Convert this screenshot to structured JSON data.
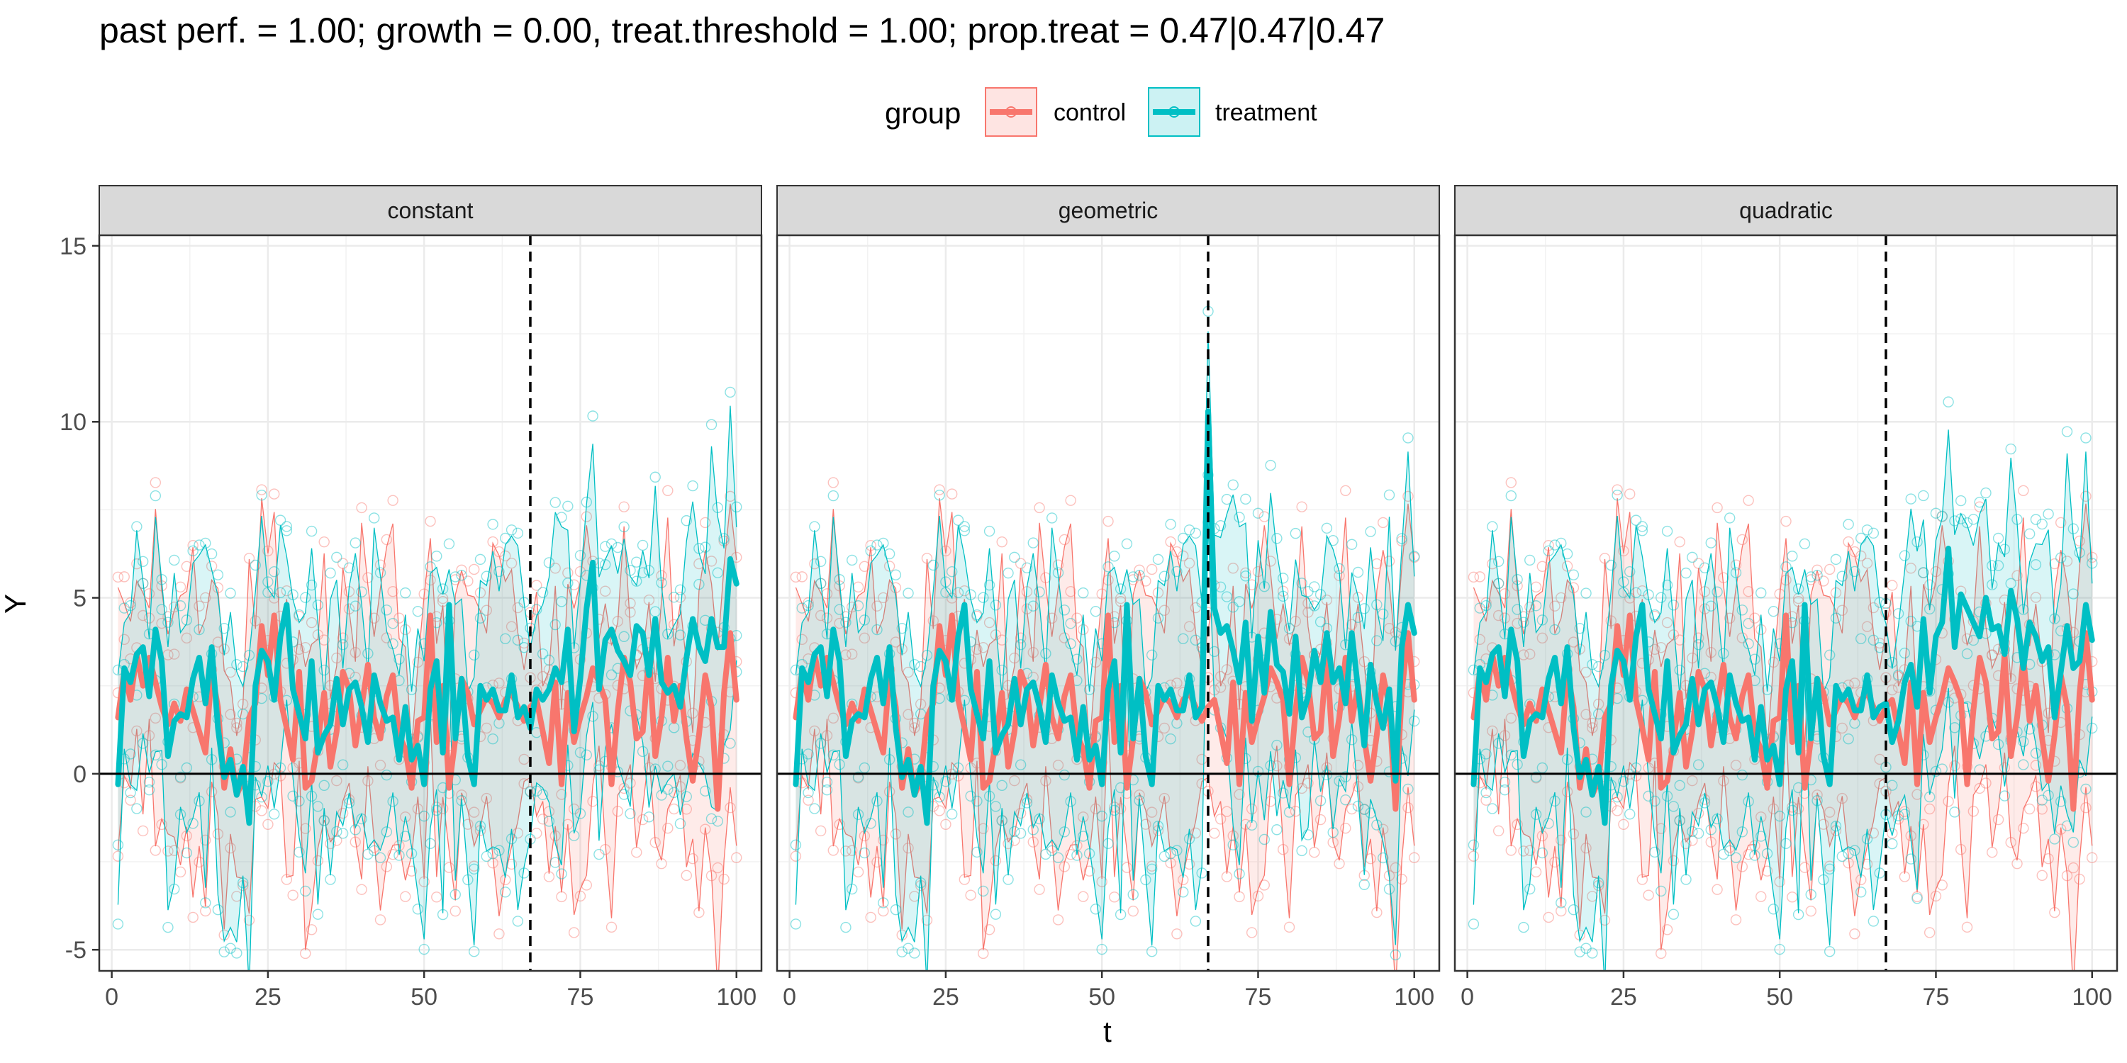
{
  "chart_data": {
    "type": "line",
    "title": "past perf. = 1.00; growth = 0.00,  treat.threshold = 1.00;  prop.treat = 0.47|0.47|0.47",
    "xlabel": "t",
    "ylabel": "Y",
    "xlim": [
      -2,
      104
    ],
    "ylim": [
      -5.6,
      15.3
    ],
    "xticks": [
      0,
      25,
      50,
      75,
      100
    ],
    "yticks": [
      -5,
      0,
      5,
      10,
      15
    ],
    "hline": 0,
    "vline": 67,
    "grid": true,
    "legend": {
      "title": "group",
      "position": "top",
      "entries": [
        {
          "label": "control",
          "color": "#F8766D"
        },
        {
          "label": "treatment",
          "color": "#00BFC4"
        }
      ]
    },
    "panels": [
      {
        "label": "constant",
        "series": [
          {
            "name": "control",
            "color": "#F8766D",
            "mean": [
              1.6,
              2.9,
              2.1,
              3.4,
              2.5,
              3.3,
              2.6,
              1.9,
              1.4,
              2.0,
              1.5,
              2.4,
              1.8,
              1.2,
              0.6,
              2.9,
              1.9,
              -0.4,
              0.7,
              -0.6,
              -0.2,
              1.6,
              2.0,
              4.2,
              2.8,
              4.5,
              2.1,
              1.3,
              0.4,
              2.9,
              -0.4,
              -0.2,
              0.9,
              2.3,
              0.2,
              1.2,
              2.9,
              2.4,
              0.8,
              1.9,
              3.1,
              1.6,
              1.0,
              2.2,
              2.8,
              1.1,
              0.7,
              -0.4,
              1.5,
              1.6,
              4.5,
              0.9,
              2.5,
              -0.4,
              1.0,
              2.7,
              2.3,
              1.4,
              1.8,
              2.2,
              2.0,
              1.6,
              2.1,
              2.3,
              1.9,
              1.5,
              1.9,
              2.1,
              1.2,
              0.3,
              2.6,
              -0.3,
              2.3,
              0.9,
              1.6,
              2.2,
              3.0,
              2.6,
              2.1,
              -0.3,
              1.8,
              3.3,
              2.6,
              1.0,
              1.2,
              3.4,
              0.5,
              1.6,
              3.3,
              1.5,
              2.5,
              1.0,
              -0.2,
              1.1,
              2.8,
              1.9,
              -1.0,
              2.3,
              4.0,
              2.1
            ]
          },
          {
            "name": "treatment",
            "color": "#00BFC4",
            "mean": [
              -0.3,
              3.0,
              2.6,
              3.4,
              3.6,
              2.2,
              4.1,
              3.2,
              0.5,
              1.5,
              1.7,
              1.6,
              2.7,
              3.3,
              2.0,
              3.6,
              1.3,
              -0.1,
              0.4,
              -0.6,
              0.2,
              -1.4,
              2.5,
              3.5,
              3.2,
              2.1,
              3.9,
              4.8,
              2.4,
              1.7,
              1.0,
              3.2,
              0.6,
              1.1,
              1.4,
              2.7,
              1.4,
              2.4,
              2.6,
              1.9,
              0.9,
              2.8,
              2.0,
              1.5,
              1.6,
              0.4,
              1.9,
              0.4,
              0.8,
              -0.3,
              2.4,
              3.2,
              0.6,
              4.8,
              1.0,
              2.7,
              0.5,
              -0.3,
              2.5,
              2.1,
              2.4,
              1.8,
              1.8,
              2.8,
              1.6,
              1.9,
              1.3,
              2.4,
              2.1,
              2.4,
              3.0,
              2.6,
              4.1,
              1.2,
              2.7,
              4.7,
              6.0,
              2.4,
              3.8,
              4.1,
              3.5,
              3.2,
              2.8,
              4.2,
              4.0,
              2.8,
              4.4,
              2.6,
              2.3,
              2.5,
              1.9,
              3.3,
              4.4,
              3.6,
              3.2,
              4.4,
              3.6,
              3.6,
              6.1,
              5.4
            ]
          }
        ]
      },
      {
        "label": "geometric",
        "series": [
          {
            "name": "control",
            "color": "#F8766D",
            "mean": [
              1.6,
              2.9,
              2.1,
              3.4,
              2.5,
              3.3,
              2.6,
              1.9,
              1.4,
              2.0,
              1.5,
              2.4,
              1.8,
              1.2,
              0.6,
              2.9,
              1.9,
              -0.4,
              0.7,
              -0.6,
              -0.2,
              1.6,
              2.0,
              4.2,
              2.8,
              4.5,
              2.1,
              1.3,
              0.4,
              2.9,
              -0.4,
              -0.2,
              0.9,
              2.3,
              0.2,
              1.2,
              2.9,
              2.4,
              0.8,
              1.9,
              3.1,
              1.6,
              1.0,
              2.2,
              2.8,
              1.1,
              0.7,
              -0.4,
              1.5,
              1.6,
              4.5,
              0.9,
              2.5,
              -0.4,
              1.0,
              2.7,
              2.3,
              1.4,
              1.8,
              2.2,
              2.0,
              1.6,
              2.1,
              2.3,
              1.9,
              1.5,
              1.9,
              2.1,
              1.2,
              0.3,
              2.6,
              -0.3,
              2.3,
              0.9,
              1.6,
              2.2,
              3.0,
              2.6,
              2.1,
              -0.3,
              1.8,
              3.3,
              2.6,
              1.0,
              1.2,
              3.4,
              0.5,
              1.6,
              3.3,
              1.5,
              2.5,
              1.0,
              -0.2,
              1.1,
              2.8,
              1.9,
              -1.0,
              2.3,
              4.0,
              2.1
            ]
          },
          {
            "name": "treatment",
            "color": "#00BFC4",
            "mean": [
              -0.3,
              3.0,
              2.6,
              3.4,
              3.6,
              2.2,
              4.1,
              3.2,
              0.5,
              1.5,
              1.7,
              1.6,
              2.7,
              3.3,
              2.0,
              3.6,
              1.3,
              -0.1,
              0.4,
              -0.6,
              0.2,
              -1.4,
              2.5,
              3.5,
              3.2,
              2.1,
              3.9,
              4.8,
              2.4,
              1.7,
              1.0,
              3.2,
              0.6,
              1.1,
              1.4,
              2.7,
              1.4,
              2.4,
              2.6,
              1.9,
              0.9,
              2.8,
              2.0,
              1.5,
              1.6,
              0.4,
              1.9,
              0.4,
              0.8,
              -0.3,
              2.4,
              3.2,
              0.6,
              4.8,
              1.0,
              2.7,
              0.5,
              -0.3,
              2.5,
              2.1,
              2.4,
              1.8,
              1.8,
              2.8,
              1.6,
              1.9,
              10.3,
              4.7,
              4.0,
              4.2,
              3.5,
              2.6,
              4.3,
              1.5,
              3.9,
              2.3,
              4.6,
              3.1,
              2.9,
              1.7,
              3.9,
              1.6,
              2.2,
              3.5,
              2.6,
              4.0,
              2.6,
              3.0,
              2.0,
              4.0,
              2.4,
              0.8,
              3.1,
              2.0,
              1.3,
              2.4,
              -0.2,
              3.6,
              4.8,
              4.0
            ]
          }
        ]
      },
      {
        "label": "quadratic",
        "series": [
          {
            "name": "control",
            "color": "#F8766D",
            "mean": [
              1.6,
              2.9,
              2.1,
              3.4,
              2.5,
              3.3,
              2.6,
              1.9,
              1.4,
              2.0,
              1.5,
              2.4,
              1.8,
              1.2,
              0.6,
              2.9,
              1.9,
              -0.4,
              0.7,
              -0.6,
              -0.2,
              1.6,
              2.0,
              4.2,
              2.8,
              4.5,
              2.1,
              1.3,
              0.4,
              2.9,
              -0.4,
              -0.2,
              0.9,
              2.3,
              0.2,
              1.2,
              2.9,
              2.4,
              0.8,
              1.9,
              3.1,
              1.6,
              1.0,
              2.2,
              2.8,
              1.1,
              0.7,
              -0.4,
              1.5,
              1.6,
              4.5,
              0.9,
              2.5,
              -0.4,
              1.0,
              2.7,
              2.3,
              1.4,
              1.8,
              2.2,
              2.0,
              1.6,
              2.1,
              2.3,
              1.9,
              1.5,
              1.9,
              2.1,
              1.2,
              0.3,
              2.6,
              -0.3,
              2.3,
              0.9,
              1.6,
              2.2,
              3.0,
              2.6,
              2.1,
              -0.3,
              1.8,
              3.3,
              2.6,
              1.0,
              1.2,
              3.4,
              0.5,
              1.6,
              3.3,
              1.5,
              2.5,
              1.0,
              -0.2,
              1.1,
              2.8,
              1.9,
              -1.0,
              2.3,
              4.0,
              2.1
            ]
          },
          {
            "name": "treatment",
            "color": "#00BFC4",
            "mean": [
              -0.3,
              3.0,
              2.6,
              3.4,
              3.6,
              2.2,
              4.1,
              3.2,
              0.5,
              1.5,
              1.7,
              1.6,
              2.7,
              3.3,
              2.0,
              3.6,
              1.3,
              -0.1,
              0.4,
              -0.6,
              0.2,
              -1.4,
              2.5,
              3.5,
              3.2,
              2.1,
              3.9,
              4.8,
              2.4,
              1.7,
              1.0,
              3.2,
              0.6,
              1.1,
              1.4,
              2.7,
              1.4,
              2.4,
              2.6,
              1.9,
              0.9,
              2.8,
              2.0,
              1.5,
              1.6,
              0.4,
              1.9,
              0.4,
              0.8,
              -0.3,
              2.4,
              3.2,
              0.6,
              4.8,
              1.0,
              2.7,
              0.5,
              -0.3,
              2.5,
              2.1,
              2.4,
              1.8,
              1.8,
              2.8,
              1.6,
              1.9,
              2.0,
              0.9,
              1.5,
              2.6,
              3.1,
              1.9,
              4.4,
              2.3,
              3.9,
              4.3,
              6.4,
              3.6,
              5.1,
              4.7,
              4.3,
              3.9,
              5.0,
              4.1,
              4.2,
              3.4,
              5.2,
              4.4,
              3.0,
              4.3,
              3.9,
              3.2,
              3.6,
              1.6,
              2.9,
              4.2,
              3.0,
              3.2,
              4.8,
              3.8
            ]
          }
        ]
      }
    ]
  }
}
